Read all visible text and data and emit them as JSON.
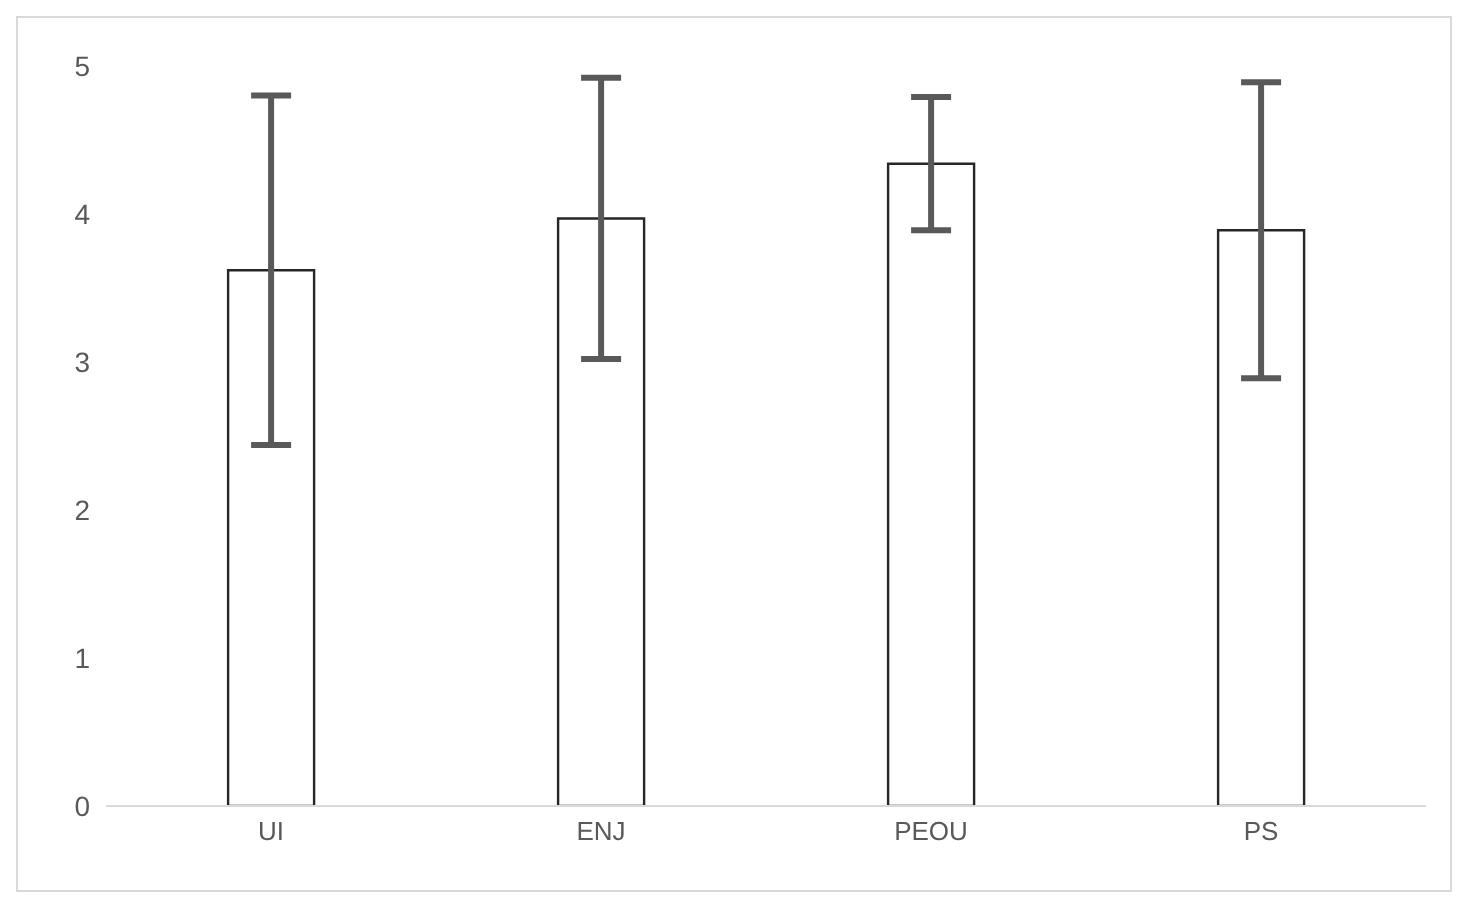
{
  "chart_data": {
    "type": "bar",
    "categories": [
      "UI",
      "ENJ",
      "PEOU",
      "PS"
    ],
    "values": [
      3.62,
      3.97,
      4.34,
      3.89
    ],
    "errors": [
      1.18,
      0.95,
      0.45,
      1.0
    ],
    "color": "#ffffff",
    "ylim": [
      0,
      5
    ],
    "yticks": [
      0,
      1,
      2,
      3,
      4,
      5
    ],
    "grid": false,
    "legend": false
  }
}
